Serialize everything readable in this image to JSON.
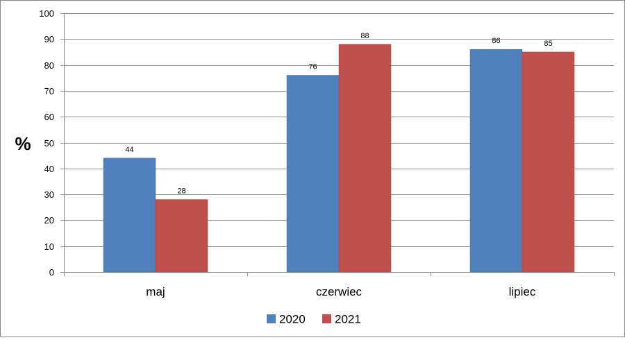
{
  "chart_data": {
    "type": "bar",
    "title": "",
    "xlabel": "",
    "ylabel": "%",
    "ylim": [
      0,
      100
    ],
    "yticks": [
      0,
      10,
      20,
      30,
      40,
      50,
      60,
      70,
      80,
      90,
      100
    ],
    "categories": [
      "maj",
      "czerwiec",
      "lipiec"
    ],
    "series": [
      {
        "name": "2020",
        "values": [
          44,
          76,
          86
        ],
        "color": "#4f81bd"
      },
      {
        "name": "2021",
        "values": [
          28,
          88,
          85
        ],
        "color": "#c0504d"
      }
    ],
    "grid": true,
    "legend_position": "bottom",
    "data_labels": true
  }
}
